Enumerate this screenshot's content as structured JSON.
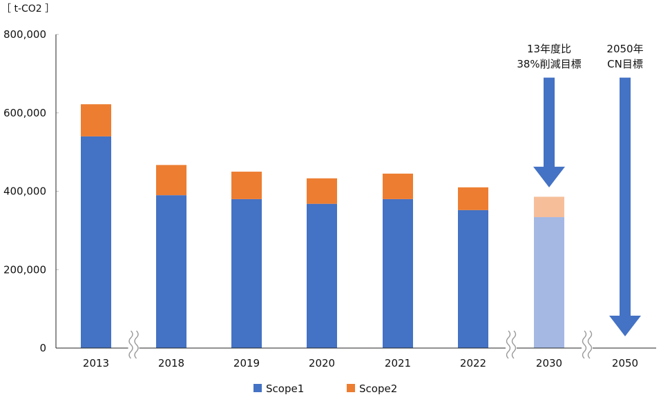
{
  "chart_data": {
    "type": "bar",
    "stacked": true,
    "unit_label": "［ t-CO2 ］",
    "categories": [
      "2013",
      "2018",
      "2019",
      "2020",
      "2021",
      "2022",
      "2030",
      "2050"
    ],
    "series": [
      {
        "name": "Scope1",
        "values": [
          540000,
          390000,
          380000,
          368000,
          380000,
          352000,
          334000,
          0
        ]
      },
      {
        "name": "Scope2",
        "values": [
          82000,
          77000,
          70000,
          65000,
          65000,
          58000,
          52000,
          0
        ]
      }
    ],
    "projected_categories": [
      "2030"
    ],
    "axis_breaks_after": [
      "2013",
      "2022",
      "2030"
    ],
    "ylim": [
      0,
      800000
    ],
    "yticks": [
      0,
      200000,
      400000,
      600000,
      800000
    ],
    "ytick_labels": [
      "0",
      "200,000",
      "400,000",
      "600,000",
      "800,000"
    ],
    "annotations": [
      {
        "category": "2030",
        "lines": [
          "13年度比",
          "38%削減目標"
        ],
        "arrow_from": 690000,
        "arrow_to": 410000
      },
      {
        "category": "2050",
        "lines": [
          "2050年",
          "CN目標"
        ],
        "arrow_from": 690000,
        "arrow_to": 30000
      }
    ],
    "legend_position": "bottom",
    "colors": {
      "Scope1": "#4472c4",
      "Scope2": "#ed7d31",
      "Scope1_projected": "#a4b8e3",
      "Scope2_projected": "#f6bf9a",
      "arrow": "#4472c4",
      "axis": "#222222",
      "gridline": "#bfbfbf"
    }
  }
}
